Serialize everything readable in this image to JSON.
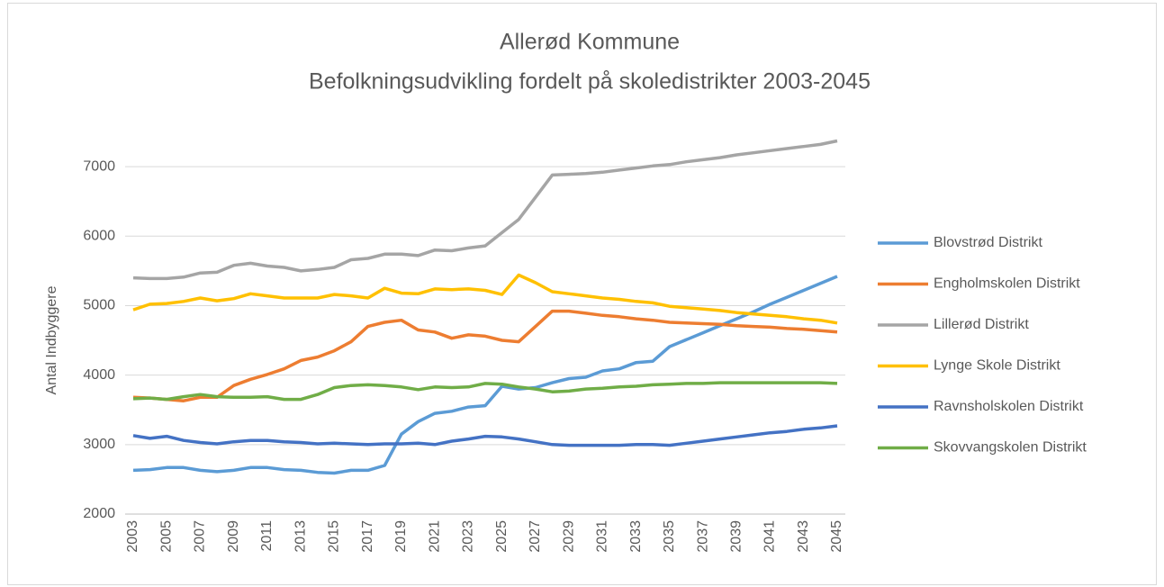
{
  "chart_data": {
    "type": "line",
    "title": "Allerød Kommune",
    "subtitle": "Befolkningsudvikling fordelt på skoledistrikter 2003-2045",
    "y_label": "Antal Indbyggere",
    "x": [
      2003,
      2004,
      2005,
      2006,
      2007,
      2008,
      2009,
      2010,
      2011,
      2012,
      2013,
      2014,
      2015,
      2016,
      2017,
      2018,
      2019,
      2020,
      2021,
      2022,
      2023,
      2024,
      2025,
      2026,
      2027,
      2028,
      2029,
      2030,
      2031,
      2032,
      2033,
      2034,
      2035,
      2036,
      2037,
      2038,
      2039,
      2040,
      2041,
      2042,
      2043,
      2044,
      2045
    ],
    "xlim": [
      2003,
      2045
    ],
    "xticks": [
      2003,
      2005,
      2007,
      2009,
      2011,
      2013,
      2015,
      2017,
      2019,
      2021,
      2023,
      2025,
      2027,
      2029,
      2031,
      2033,
      2035,
      2037,
      2039,
      2041,
      2043,
      2045
    ],
    "ylim": [
      2000,
      7500
    ],
    "yticks": [
      2000,
      3000,
      4000,
      5000,
      6000,
      7000
    ],
    "grid": true,
    "legend": "right",
    "series": [
      {
        "name": "Blovstrød Distrikt",
        "color": "#5b9bd5",
        "values": [
          2630,
          2640,
          2670,
          2670,
          2630,
          2610,
          2630,
          2670,
          2670,
          2640,
          2630,
          2600,
          2590,
          2630,
          2630,
          2700,
          3150,
          3330,
          3450,
          3480,
          3540,
          3560,
          3840,
          3800,
          3820,
          3890,
          3950,
          3970,
          4060,
          4090,
          4180,
          4200,
          4410,
          4510,
          4610,
          4710,
          4810,
          4910,
          5020,
          5120,
          5220,
          5320,
          5420
        ]
      },
      {
        "name": "Engholmskolen Distrikt",
        "color": "#ed7d31",
        "values": [
          3680,
          3670,
          3650,
          3630,
          3680,
          3680,
          3850,
          3940,
          4010,
          4090,
          4210,
          4260,
          4350,
          4480,
          4700,
          4760,
          4790,
          4650,
          4620,
          4530,
          4580,
          4560,
          4500,
          4480,
          4700,
          4920,
          4920,
          4890,
          4860,
          4840,
          4810,
          4790,
          4760,
          4750,
          4740,
          4730,
          4710,
          4700,
          4690,
          4670,
          4660,
          4640,
          4620
        ]
      },
      {
        "name": "Lillerød Distrikt",
        "color": "#a5a5a5",
        "values": [
          5400,
          5390,
          5390,
          5410,
          5470,
          5480,
          5580,
          5610,
          5570,
          5550,
          5500,
          5520,
          5550,
          5660,
          5680,
          5740,
          5740,
          5720,
          5800,
          5790,
          5830,
          5860,
          6050,
          6240,
          6560,
          6880,
          6890,
          6900,
          6920,
          6950,
          6980,
          7010,
          7030,
          7070,
          7100,
          7130,
          7170,
          7200,
          7230,
          7260,
          7290,
          7320,
          7370
        ]
      },
      {
        "name": "Lynge Skole Distrikt",
        "color": "#ffc000",
        "values": [
          4940,
          5020,
          5030,
          5060,
          5110,
          5070,
          5100,
          5170,
          5140,
          5110,
          5110,
          5110,
          5160,
          5140,
          5110,
          5250,
          5180,
          5170,
          5240,
          5230,
          5240,
          5220,
          5160,
          5440,
          5330,
          5200,
          5170,
          5140,
          5110,
          5090,
          5060,
          5040,
          4990,
          4970,
          4950,
          4930,
          4900,
          4880,
          4860,
          4840,
          4810,
          4790,
          4750
        ]
      },
      {
        "name": "Ravnsholskolen Distrikt",
        "color": "#4472c4",
        "values": [
          3130,
          3090,
          3120,
          3060,
          3030,
          3010,
          3040,
          3060,
          3060,
          3040,
          3030,
          3010,
          3020,
          3010,
          3000,
          3010,
          3010,
          3020,
          3000,
          3050,
          3080,
          3120,
          3110,
          3080,
          3040,
          3000,
          2990,
          2990,
          2990,
          2990,
          3000,
          3000,
          2990,
          3020,
          3050,
          3080,
          3110,
          3140,
          3170,
          3190,
          3220,
          3240,
          3270
        ]
      },
      {
        "name": "Skovvangskolen Distrikt",
        "color": "#70ad47",
        "values": [
          3660,
          3670,
          3650,
          3690,
          3720,
          3690,
          3680,
          3680,
          3690,
          3650,
          3650,
          3720,
          3820,
          3850,
          3860,
          3850,
          3830,
          3790,
          3830,
          3820,
          3830,
          3880,
          3870,
          3830,
          3800,
          3760,
          3770,
          3800,
          3810,
          3830,
          3840,
          3860,
          3870,
          3880,
          3880,
          3890,
          3890,
          3890,
          3890,
          3890,
          3890,
          3890,
          3880
        ]
      }
    ]
  }
}
